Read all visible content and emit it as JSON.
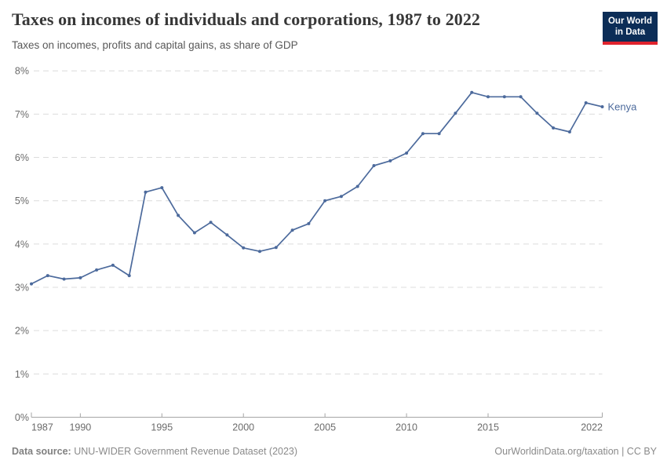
{
  "header": {
    "title": "Taxes on incomes of individuals and corporations, 1987 to 2022",
    "subtitle": "Taxes on incomes, profits and capital gains, as share of GDP",
    "logo": {
      "line1": "Our World",
      "line2": "in Data",
      "bg_color": "#0c2d57",
      "accent_color": "#e0232d"
    }
  },
  "chart_data": {
    "type": "line",
    "title": "Taxes on incomes of individuals and corporations, 1987 to 2022",
    "subtitle": "Taxes on incomes, profits and capital gains, as share of GDP",
    "xlabel": "",
    "ylabel": "",
    "xlim": [
      1987,
      2022
    ],
    "ylim": [
      0,
      8
    ],
    "x_ticks": [
      1987,
      1990,
      1995,
      2000,
      2005,
      2010,
      2015,
      2022
    ],
    "y_tick_labels": [
      "0%",
      "1%",
      "2%",
      "3%",
      "4%",
      "5%",
      "6%",
      "7%",
      "8%"
    ],
    "grid": "horizontal-dashed",
    "legend_position": "end-of-line",
    "colors": {
      "line": "#4c6a9c",
      "gridline": "#dcdcdc",
      "axis": "#a5a5a5",
      "tick_text": "#6b6b6b"
    },
    "series": [
      {
        "name": "Kenya",
        "color": "#4c6a9c",
        "x": [
          1987,
          1988,
          1989,
          1990,
          1991,
          1992,
          1993,
          1994,
          1995,
          1996,
          1997,
          1998,
          1999,
          2000,
          2001,
          2002,
          2003,
          2004,
          2005,
          2006,
          2007,
          2008,
          2009,
          2010,
          2011,
          2012,
          2013,
          2014,
          2015,
          2016,
          2017,
          2018,
          2019,
          2020,
          2021,
          2022
        ],
        "values": [
          3.08,
          3.27,
          3.19,
          3.22,
          3.4,
          3.51,
          3.27,
          5.2,
          5.3,
          4.66,
          4.26,
          4.5,
          4.21,
          3.91,
          3.83,
          3.92,
          4.32,
          4.47,
          5.0,
          5.1,
          5.33,
          5.81,
          5.92,
          6.1,
          6.55,
          6.55,
          7.02,
          7.5,
          7.4,
          7.4,
          7.4,
          7.02,
          6.68,
          6.59,
          7.26,
          7.17
        ]
      }
    ]
  },
  "footer": {
    "source_label": "Data source:",
    "source_text": " UNU-WIDER Government Revenue Dataset (2023)",
    "credit_text": "OurWorldinData.org/taxation | CC BY"
  }
}
